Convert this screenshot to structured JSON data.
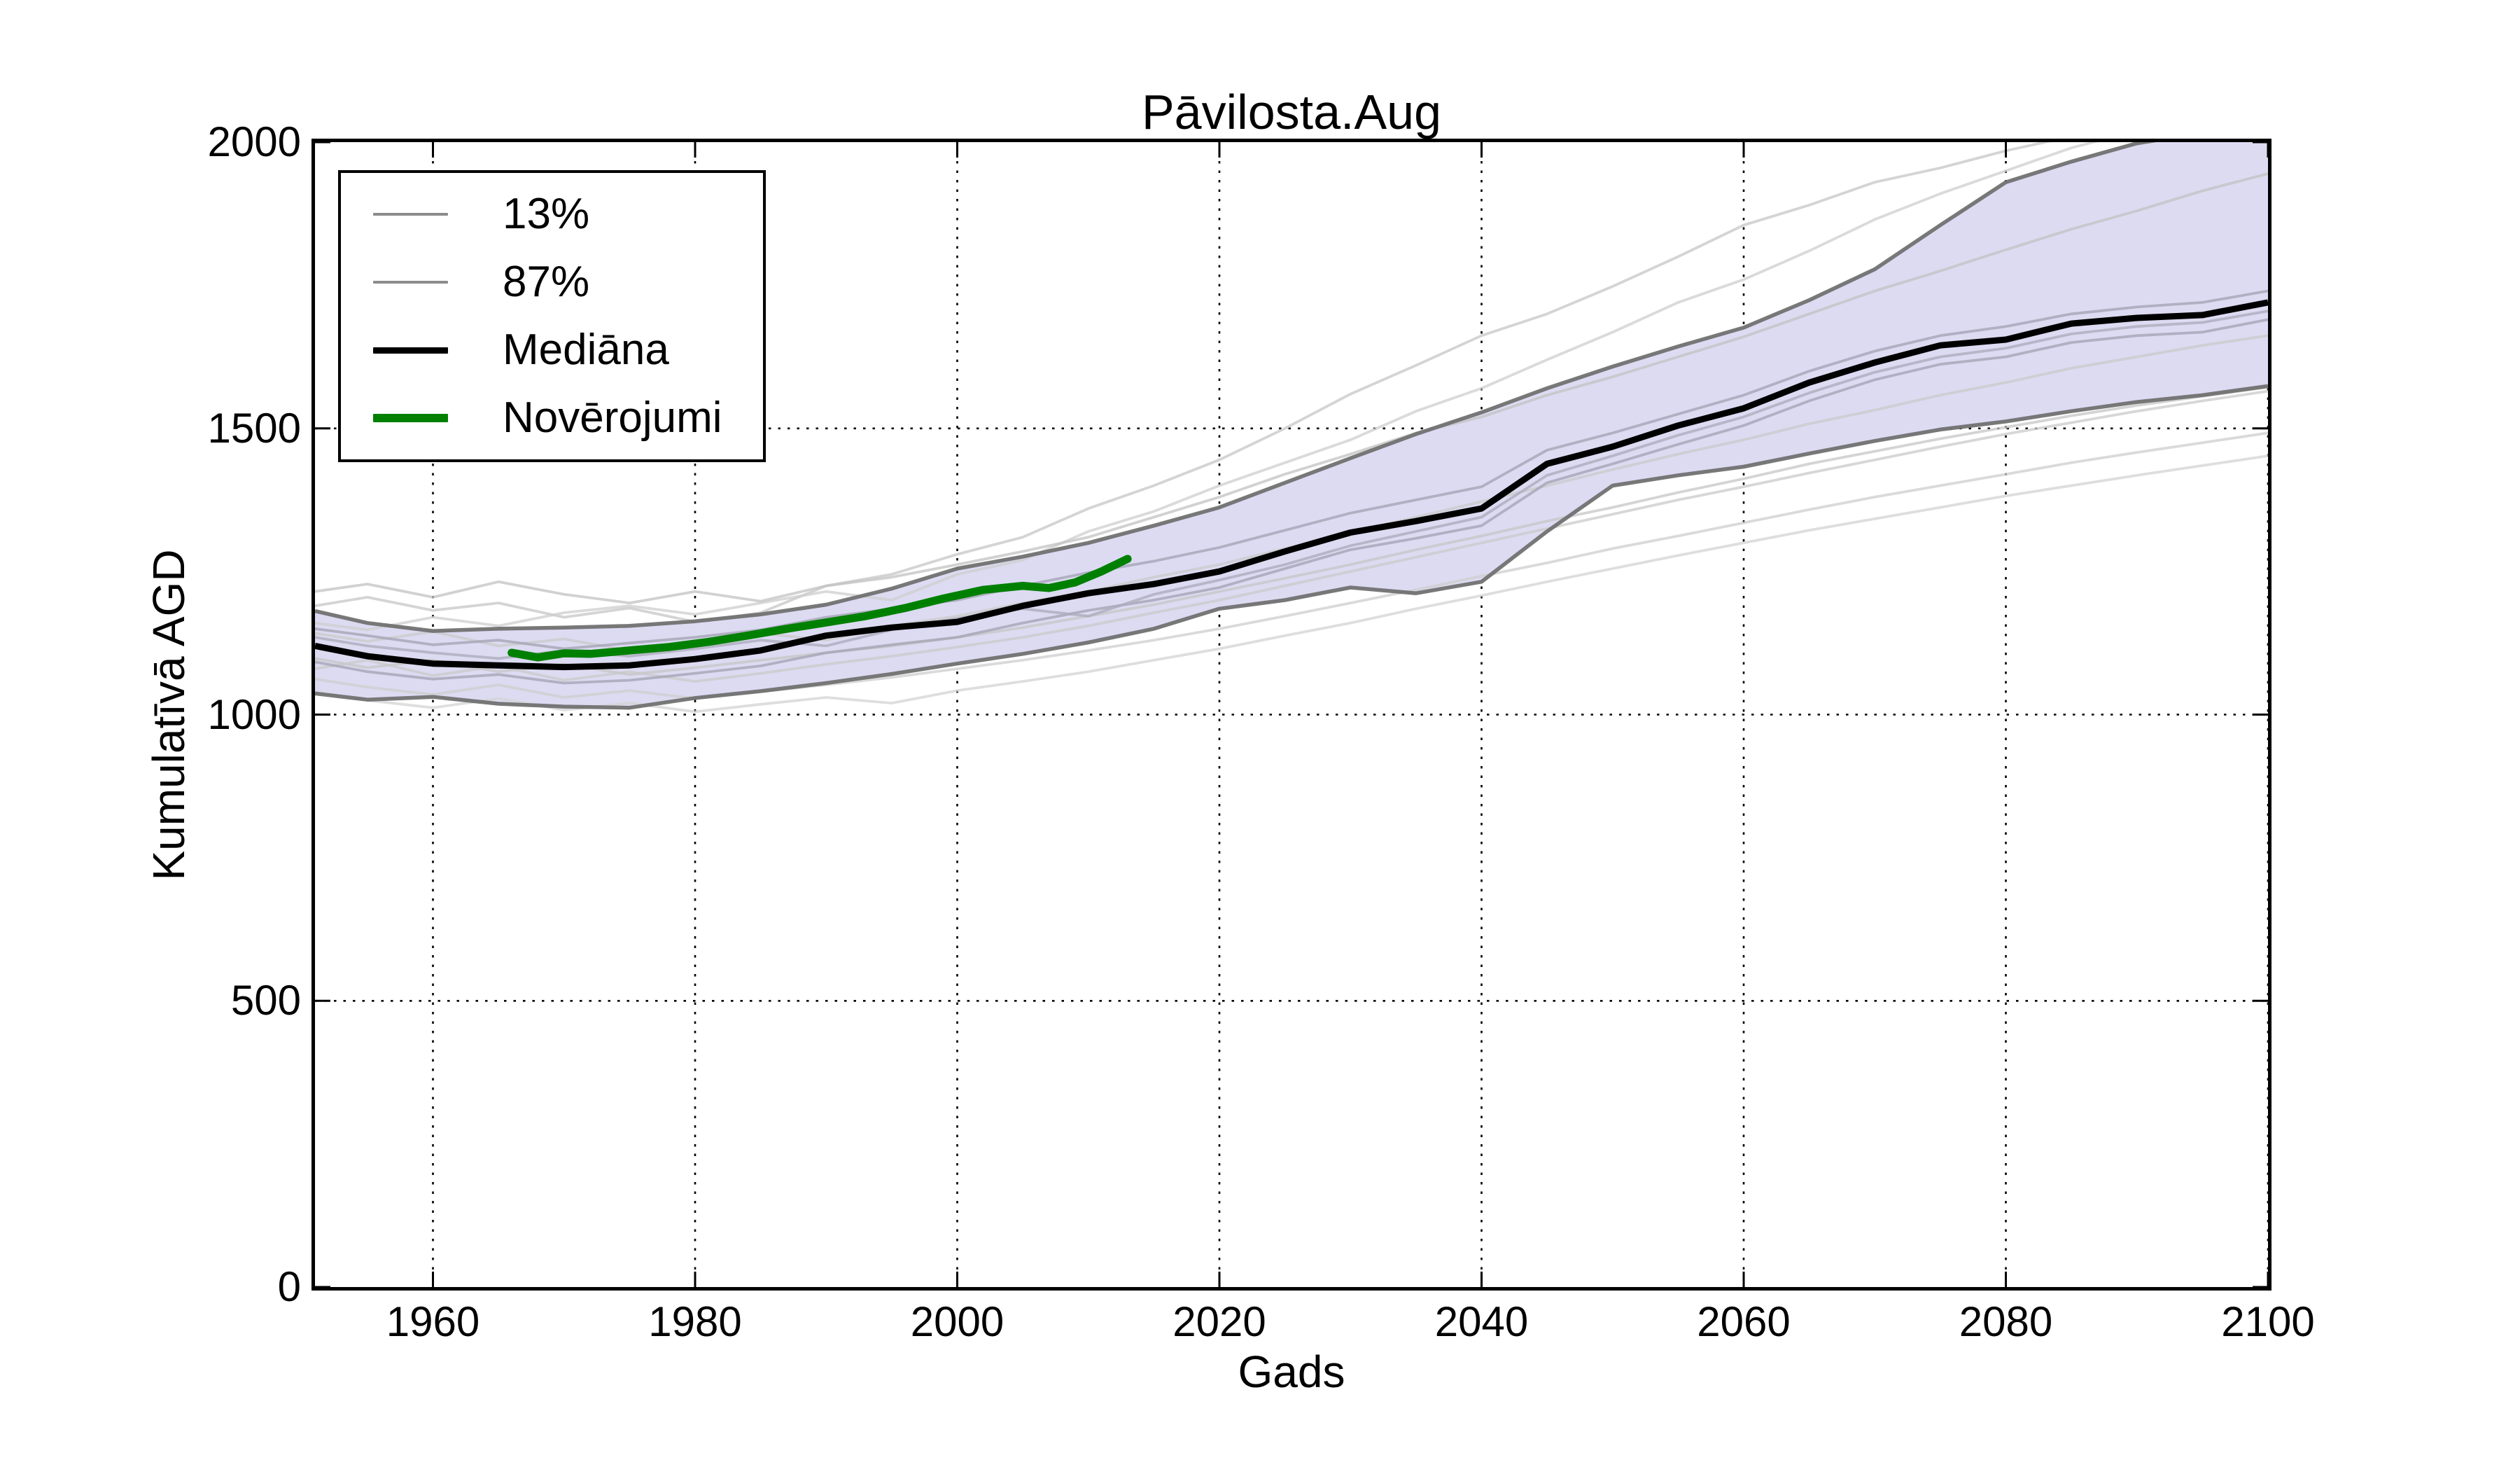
{
  "title": "Pāvilosta.Aug",
  "chart_data": {
    "type": "line",
    "title": "Pāvilosta.Aug",
    "xlabel": "Gads",
    "ylabel": "Kumulatīvā AGD",
    "xlim": [
      1951,
      2100
    ],
    "ylim": [
      0,
      2000
    ],
    "x_ticks": [
      1960,
      1980,
      2000,
      2020,
      2040,
      2060,
      2080,
      2100
    ],
    "y_ticks": [
      0,
      500,
      1000,
      1500,
      2000
    ],
    "grid": "dotted",
    "legend_position": "upper left",
    "band": {
      "lower_series": "13%",
      "upper_series": "87%",
      "fill_color": "#dcdbf2"
    },
    "model_years": [
      1951,
      1955,
      1960,
      1965,
      1970,
      1975,
      1980,
      1985,
      1990,
      1995,
      2000,
      2005,
      2010,
      2015,
      2020,
      2025,
      2030,
      2035,
      2040,
      2045,
      2050,
      2055,
      2060,
      2065,
      2070,
      2075,
      2080,
      2085,
      2090,
      2095,
      2100
    ],
    "series": [
      {
        "name": "ensemble-run-1",
        "role": "run",
        "color": "#c6c6c6",
        "opacity": 0.75,
        "width": 3.8,
        "values": [
          1190,
          1205,
          1182,
          1195,
          1170,
          1186,
          1162,
          1178,
          1225,
          1245,
          1280,
          1310,
          1360,
          1400,
          1445,
          1500,
          1560,
          1610,
          1662,
          1700,
          1748,
          1800,
          1855,
          1890,
          1930,
          1955,
          1985,
          2010,
          2030,
          2045,
          2060
        ]
      },
      {
        "name": "ensemble-run-2",
        "role": "run",
        "color": "#cecece",
        "opacity": 0.75,
        "width": 3.8,
        "values": [
          1160,
          1148,
          1170,
          1155,
          1178,
          1190,
          1175,
          1195,
          1215,
          1200,
          1245,
          1270,
          1320,
          1355,
          1400,
          1440,
          1480,
          1530,
          1570,
          1620,
          1668,
          1720,
          1760,
          1810,
          1865,
          1910,
          1950,
          1990,
          2020,
          2035,
          2050
        ]
      },
      {
        "name": "ensemble-run-3",
        "role": "run",
        "color": "#c2c2c2",
        "opacity": 0.75,
        "width": 3.8,
        "values": [
          1215,
          1228,
          1205,
          1232,
          1210,
          1195,
          1215,
          1198,
          1225,
          1240,
          1262,
          1285,
          1310,
          1345,
          1380,
          1420,
          1455,
          1492,
          1520,
          1558,
          1590,
          1625,
          1660,
          1700,
          1740,
          1775,
          1812,
          1848,
          1880,
          1915,
          1945
        ]
      },
      {
        "name": "ensemble-run-4",
        "role": "run",
        "color": "#c9c9c9",
        "opacity": 0.75,
        "width": 3.8,
        "values": [
          1142,
          1128,
          1145,
          1120,
          1132,
          1112,
          1128,
          1142,
          1130,
          1155,
          1172,
          1195,
          1215,
          1240,
          1262,
          1290,
          1318,
          1345,
          1372,
          1400,
          1428,
          1455,
          1480,
          1508,
          1532,
          1558,
          1580,
          1605,
          1625,
          1645,
          1662
        ]
      },
      {
        "name": "ensemble-run-5",
        "role": "run",
        "color": "#c6c6c6",
        "opacity": 0.75,
        "width": 3.8,
        "values": [
          1098,
          1082,
          1095,
          1075,
          1088,
          1070,
          1082,
          1095,
          1108,
          1120,
          1135,
          1152,
          1172,
          1192,
          1215,
          1238,
          1262,
          1288,
          1312,
          1338,
          1362,
          1388,
          1412,
          1438,
          1460,
          1482,
          1502,
          1522,
          1540,
          1556,
          1572
        ]
      },
      {
        "name": "ensemble-run-6",
        "role": "run",
        "color": "#cdcdcd",
        "opacity": 0.75,
        "width": 3.8,
        "values": [
          1062,
          1048,
          1035,
          1052,
          1030,
          1042,
          1028,
          1040,
          1052,
          1065,
          1080,
          1095,
          1112,
          1130,
          1150,
          1172,
          1195,
          1218,
          1242,
          1265,
          1290,
          1312,
          1335,
          1358,
          1380,
          1400,
          1420,
          1440,
          1458,
          1475,
          1492
        ]
      },
      {
        "name": "ensemble-run-7",
        "role": "run",
        "color": "#d3d3d3",
        "opacity": 0.75,
        "width": 3.8,
        "values": [
          1040,
          1025,
          1012,
          1028,
          1008,
          1020,
          1005,
          1018,
          1030,
          1020,
          1042,
          1058,
          1075,
          1095,
          1115,
          1138,
          1160,
          1185,
          1208,
          1232,
          1255,
          1278,
          1300,
          1322,
          1342,
          1362,
          1382,
          1400,
          1418,
          1435,
          1452
        ]
      },
      {
        "name": "ensemble-run-8",
        "role": "run",
        "color": "#c9c9c9",
        "opacity": 0.75,
        "width": 3.8,
        "values": [
          1080,
          1095,
          1068,
          1085,
          1060,
          1075,
          1058,
          1072,
          1088,
          1102,
          1118,
          1135,
          1155,
          1178,
          1200,
          1225,
          1250,
          1275,
          1300,
          1325,
          1350,
          1375,
          1398,
          1422,
          1445,
          1468,
          1490,
          1510,
          1530,
          1548,
          1565
        ]
      },
      {
        "name": "ensemble-run-9",
        "role": "run",
        "color": "#a5a5b5",
        "opacity": 0.8,
        "width": 3.8,
        "values": [
          1150,
          1138,
          1122,
          1130,
          1115,
          1125,
          1135,
          1148,
          1170,
          1185,
          1200,
          1225,
          1248,
          1268,
          1292,
          1322,
          1352,
          1375,
          1398,
          1462,
          1492,
          1525,
          1558,
          1600,
          1635,
          1662,
          1678,
          1700,
          1712,
          1720,
          1740
        ]
      },
      {
        "name": "ensemble-run-10",
        "role": "run",
        "color": "#a5a5b5",
        "opacity": 0.8,
        "width": 3.8,
        "values": [
          1092,
          1075,
          1062,
          1070,
          1055,
          1060,
          1072,
          1085,
          1108,
          1122,
          1135,
          1160,
          1182,
          1200,
          1222,
          1255,
          1288,
          1308,
          1330,
          1405,
          1438,
          1472,
          1505,
          1548,
          1585,
          1612,
          1625,
          1650,
          1662,
          1668,
          1690
        ]
      },
      {
        "name": "ensemble-run-11",
        "role": "run",
        "color": "#adadbd",
        "opacity": 0.8,
        "width": 3.8,
        "values": [
          1135,
          1120,
          1108,
          1098,
          1112,
          1102,
          1115,
          1130,
          1120,
          1148,
          1168,
          1185,
          1172,
          1210,
          1235,
          1262,
          1295,
          1320,
          1345,
          1418,
          1452,
          1488,
          1520,
          1562,
          1598,
          1625,
          1640,
          1665,
          1678,
          1685,
          1705
        ]
      },
      {
        "name": "13%",
        "role": "percentile-lower",
        "color": "#717171",
        "opacity": 0.95,
        "width": 5.5,
        "values": [
          1037,
          1026,
          1031,
          1019,
          1014,
          1012,
          1029,
          1041,
          1055,
          1071,
          1089,
          1106,
          1126,
          1150,
          1185,
          1200,
          1222,
          1212,
          1232,
          1320,
          1400,
          1418,
          1433,
          1456,
          1478,
          1498,
          1512,
          1530,
          1546,
          1558,
          1574
        ]
      },
      {
        "name": "87%",
        "role": "percentile-upper",
        "color": "#717171",
        "opacity": 0.95,
        "width": 5.5,
        "values": [
          1181,
          1160,
          1146,
          1150,
          1152,
          1155,
          1163,
          1175,
          1192,
          1220,
          1255,
          1276,
          1300,
          1330,
          1362,
          1405,
          1448,
          1490,
          1528,
          1570,
          1608,
          1643,
          1676,
          1724,
          1778,
          1855,
          1930,
          1966,
          1998,
          2016,
          2026
        ]
      },
      {
        "name": "Mediāna",
        "role": "median",
        "color": "#000000",
        "opacity": 1,
        "width": 9,
        "values": [
          1120,
          1102,
          1089,
          1086,
          1083,
          1086,
          1097,
          1112,
          1138,
          1152,
          1162,
          1190,
          1212,
          1228,
          1250,
          1285,
          1318,
          1338,
          1360,
          1438,
          1468,
          1505,
          1535,
          1580,
          1615,
          1645,
          1655,
          1683,
          1693,
          1698,
          1720
        ]
      },
      {
        "name": "Novērojumi",
        "role": "observations",
        "color": "#008000",
        "opacity": 1,
        "width": 11.5,
        "cap": "round",
        "years": [
          1966,
          1968,
          1970,
          1972,
          1975,
          1978,
          1981,
          1984,
          1987,
          1990,
          1993,
          1996,
          1999,
          2002,
          2005,
          2007,
          2009,
          2011,
          2013
        ],
        "values": [
          1108,
          1100,
          1107,
          1106,
          1112,
          1118,
          1127,
          1138,
          1150,
          1161,
          1172,
          1186,
          1203,
          1218,
          1225,
          1221,
          1231,
          1250,
          1272
        ]
      }
    ]
  },
  "legend": {
    "items": [
      {
        "label": "13%",
        "color": "#8c8c8c",
        "thickness": 4
      },
      {
        "label": "87%",
        "color": "#8c8c8c",
        "thickness": 4
      },
      {
        "label": "Mediāna",
        "color": "#000000",
        "thickness": 9
      },
      {
        "label": "Novērojumi",
        "color": "#008000",
        "thickness": 12
      }
    ]
  }
}
